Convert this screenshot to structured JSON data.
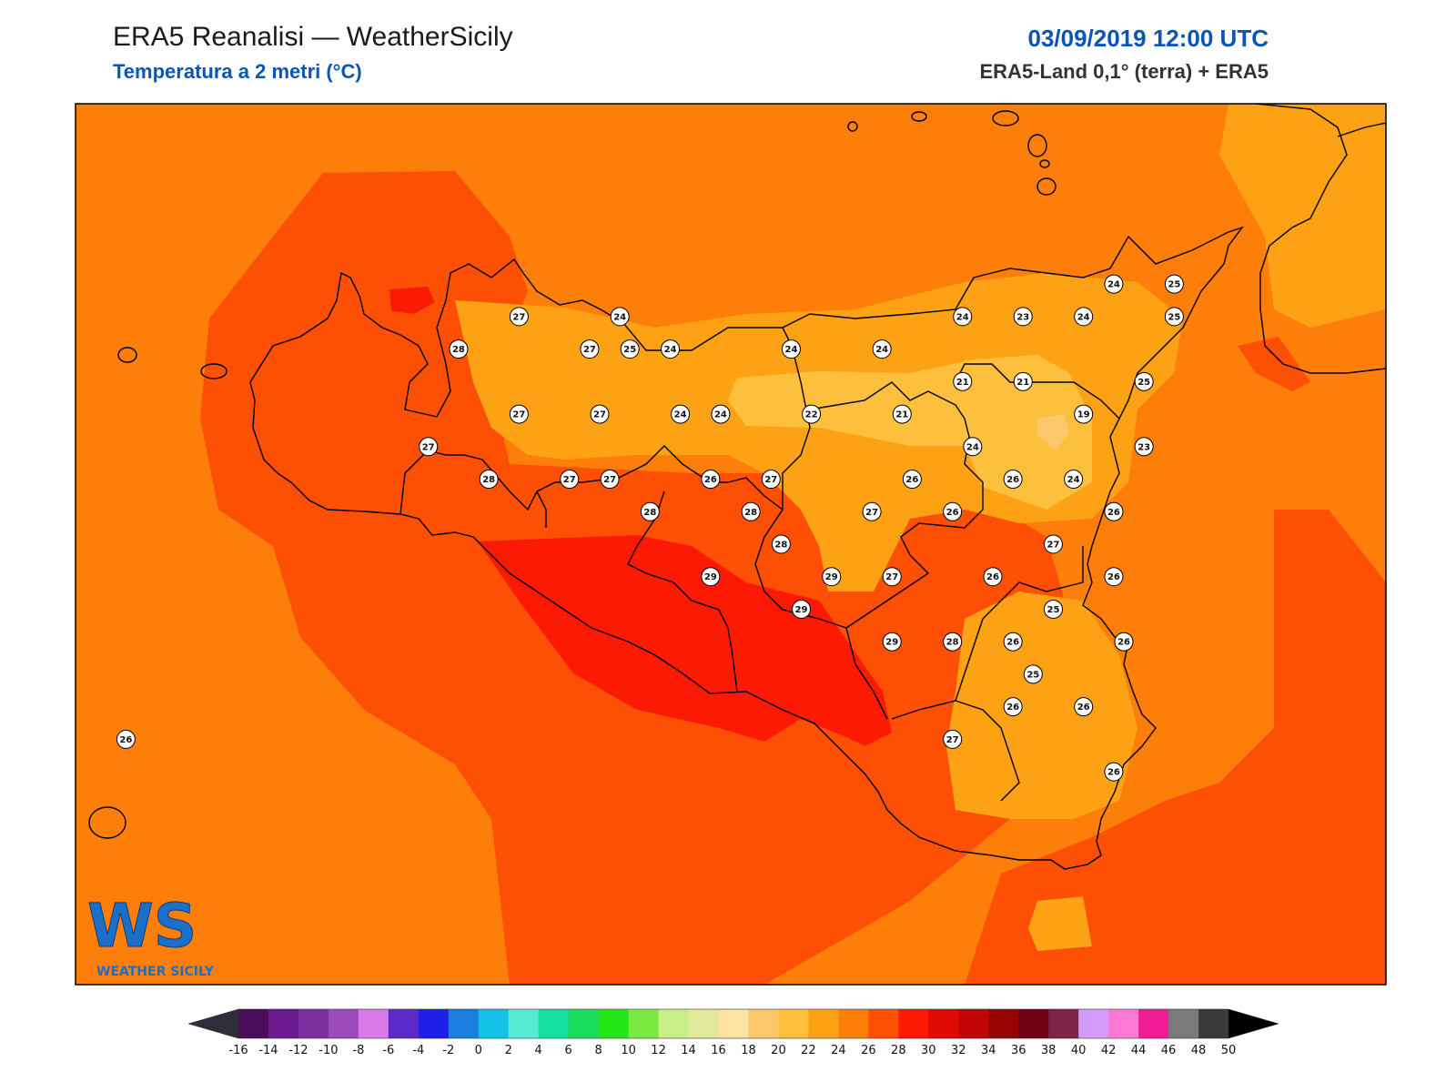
{
  "header": {
    "title": "ERA5 Reanalisi — WeatherSicily",
    "subtitle": "Temperatura a 2 metri (°C)",
    "datetime": "03/09/2019 12:00 UTC",
    "source": "ERA5-Land 0,1° (terra) + ERA5"
  },
  "logo": {
    "monogram": "WS",
    "name": "WEATHER SICILY"
  },
  "stations": [
    {
      "v": 27,
      "lon": 13.1,
      "lat": 38.16
    },
    {
      "v": 28,
      "lon": 12.5,
      "lat": 38.05
    },
    {
      "v": 27,
      "lon": 13.8,
      "lat": 38.05
    },
    {
      "v": 25,
      "lon": 14.2,
      "lat": 38.05
    },
    {
      "v": 24,
      "lon": 14.1,
      "lat": 38.16
    },
    {
      "v": 24,
      "lon": 14.6,
      "lat": 38.05
    },
    {
      "v": 24,
      "lon": 15.8,
      "lat": 38.05
    },
    {
      "v": 24,
      "lon": 16.7,
      "lat": 38.05
    },
    {
      "v": 24,
      "lon": 17.5,
      "lat": 38.16
    },
    {
      "v": 23,
      "lon": 18.1,
      "lat": 38.16
    },
    {
      "v": 24,
      "lon": 18.7,
      "lat": 38.16
    },
    {
      "v": 24,
      "lon": 19.0,
      "lat": 38.27
    },
    {
      "v": 25,
      "lon": 19.6,
      "lat": 38.27
    },
    {
      "v": 25,
      "lon": 19.6,
      "lat": 38.16
    },
    {
      "v": 27,
      "lon": 13.1,
      "lat": 37.83
    },
    {
      "v": 27,
      "lon": 13.9,
      "lat": 37.83
    },
    {
      "v": 24,
      "lon": 14.7,
      "lat": 37.83
    },
    {
      "v": 24,
      "lon": 15.1,
      "lat": 37.83
    },
    {
      "v": 22,
      "lon": 16.0,
      "lat": 37.83
    },
    {
      "v": 21,
      "lon": 16.9,
      "lat": 37.83
    },
    {
      "v": 21,
      "lon": 18.1,
      "lat": 37.94
    },
    {
      "v": 21,
      "lon": 17.5,
      "lat": 37.94
    },
    {
      "v": 19,
      "lon": 18.7,
      "lat": 37.83
    },
    {
      "v": 25,
      "lon": 19.3,
      "lat": 37.94
    },
    {
      "v": 27,
      "lon": 12.2,
      "lat": 37.72
    },
    {
      "v": 24,
      "lon": 17.6,
      "lat": 37.72
    },
    {
      "v": 23,
      "lon": 19.3,
      "lat": 37.72
    },
    {
      "v": 28,
      "lon": 12.8,
      "lat": 37.61
    },
    {
      "v": 27,
      "lon": 13.6,
      "lat": 37.61
    },
    {
      "v": 27,
      "lon": 14.0,
      "lat": 37.61
    },
    {
      "v": 26,
      "lon": 15.0,
      "lat": 37.61
    },
    {
      "v": 27,
      "lon": 15.6,
      "lat": 37.61
    },
    {
      "v": 26,
      "lon": 17.0,
      "lat": 37.61
    },
    {
      "v": 26,
      "lon": 18.0,
      "lat": 37.61
    },
    {
      "v": 24,
      "lon": 18.6,
      "lat": 37.61
    },
    {
      "v": 28,
      "lon": 14.4,
      "lat": 37.5
    },
    {
      "v": 28,
      "lon": 15.4,
      "lat": 37.5
    },
    {
      "v": 27,
      "lon": 16.6,
      "lat": 37.5
    },
    {
      "v": 26,
      "lon": 17.4,
      "lat": 37.5
    },
    {
      "v": 26,
      "lon": 19.0,
      "lat": 37.5
    },
    {
      "v": 28,
      "lon": 15.7,
      "lat": 37.39
    },
    {
      "v": 27,
      "lon": 18.4,
      "lat": 37.39
    },
    {
      "v": 29,
      "lon": 15.0,
      "lat": 37.28
    },
    {
      "v": 29,
      "lon": 16.2,
      "lat": 37.28
    },
    {
      "v": 27,
      "lon": 16.8,
      "lat": 37.28
    },
    {
      "v": 26,
      "lon": 17.8,
      "lat": 37.28
    },
    {
      "v": 26,
      "lon": 19.0,
      "lat": 37.28
    },
    {
      "v": 29,
      "lon": 15.9,
      "lat": 37.17
    },
    {
      "v": 25,
      "lon": 18.4,
      "lat": 37.17
    },
    {
      "v": 29,
      "lon": 16.8,
      "lat": 37.06
    },
    {
      "v": 28,
      "lon": 17.4,
      "lat": 37.06
    },
    {
      "v": 26,
      "lon": 18.0,
      "lat": 37.06
    },
    {
      "v": 26,
      "lon": 19.1,
      "lat": 37.06
    },
    {
      "v": 25,
      "lon": 18.2,
      "lat": 36.95
    },
    {
      "v": 26,
      "lon": 18.0,
      "lat": 36.84
    },
    {
      "v": 26,
      "lon": 18.7,
      "lat": 36.84
    },
    {
      "v": 27,
      "lon": 17.4,
      "lat": 36.73
    },
    {
      "v": 26,
      "lon": 9.2,
      "lat": 36.73
    },
    {
      "v": 26,
      "lon": 19.0,
      "lat": 36.62
    }
  ],
  "colorbar": {
    "ticks": [
      "-16",
      "-14",
      "-12",
      "-10",
      "-8",
      "-6",
      "-4",
      "-2",
      "0",
      "2",
      "4",
      "6",
      "8",
      "10",
      "12",
      "14",
      "16",
      "18",
      "20",
      "22",
      "24",
      "26",
      "28",
      "30",
      "32",
      "34",
      "36",
      "38",
      "40",
      "42",
      "44",
      "46",
      "48",
      "50"
    ],
    "colors": [
      "#4a0d5b",
      "#6a1a8c",
      "#7b2f9e",
      "#9a4aba",
      "#d97ae8",
      "#5a2bc8",
      "#1f1fe6",
      "#1a7de0",
      "#12c2e6",
      "#54ecd2",
      "#12dfa0",
      "#18dc5a",
      "#22e81a",
      "#7ce842",
      "#c8ee8a",
      "#e1ea9a",
      "#fde3a4",
      "#fdc86c",
      "#fdc03c",
      "#fda214",
      "#fd7e09",
      "#fd5004",
      "#fd1a05",
      "#e00a05",
      "#c00404",
      "#960303",
      "#6e0212",
      "#7e2248",
      "#d49cfa",
      "#fc78d2",
      "#f01c96",
      "#7a7a7a",
      "#3a3a3a"
    ],
    "under_color": "#2e2e3a",
    "over_color": "#000000"
  }
}
